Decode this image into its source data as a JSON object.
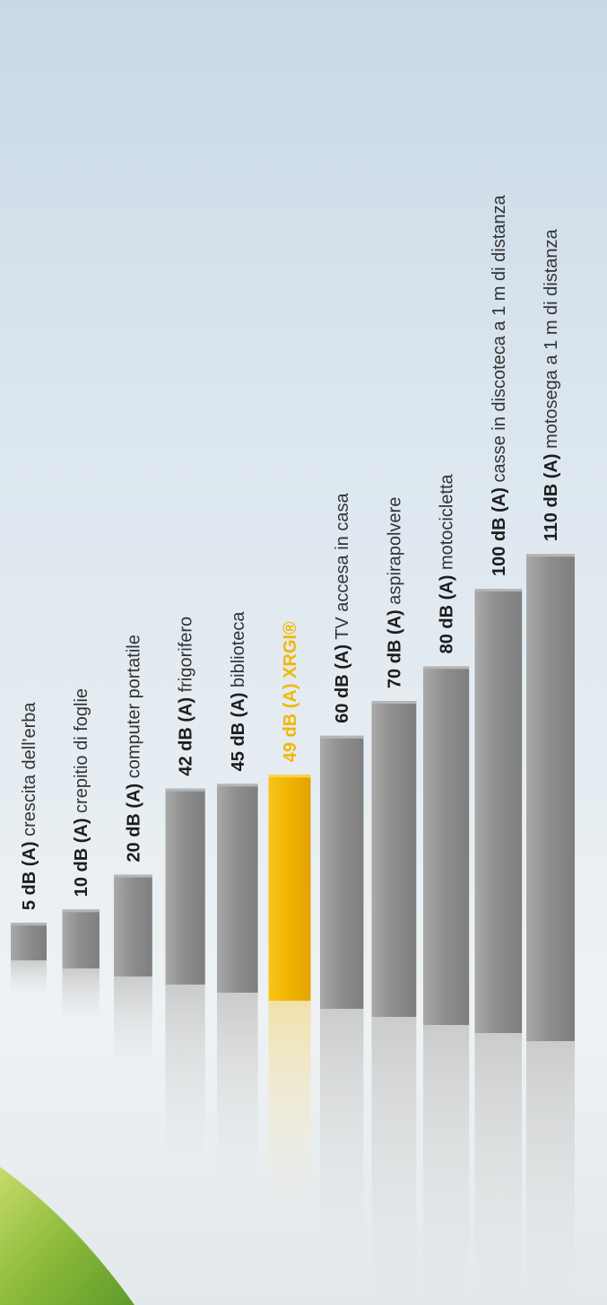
{
  "chart_data": {
    "type": "bar",
    "unit": "dB (A)",
    "bars": [
      {
        "value": 5,
        "value_text": "5 dB (A)",
        "description": "crescita dell'erba"
      },
      {
        "value": 10,
        "value_text": "10 dB (A)",
        "description": "crepitio di foglie"
      },
      {
        "value": 20,
        "value_text": "20 dB (A)",
        "description": "computer portatile"
      },
      {
        "value": 42,
        "value_text": "42 dB (A)",
        "description": "frigorifero"
      },
      {
        "value": 45,
        "value_text": "45 dB (A)",
        "description": "biblioteca"
      },
      {
        "value": 49,
        "value_text": "49 dB (A)",
        "description": "XRGI®",
        "highlight": true
      },
      {
        "value": 60,
        "value_text": "60 dB (A)",
        "description": "TV accesa in casa"
      },
      {
        "value": 70,
        "value_text": "70 dB (A)",
        "description": "aspirapolvere"
      },
      {
        "value": 80,
        "value_text": "80 dB (A)",
        "description": "motocicletta"
      },
      {
        "value": 100,
        "value_text": "100 dB (A)",
        "description": "casse in discoteca a 1 m di distanza"
      },
      {
        "value": 110,
        "value_text": "110 dB (A)",
        "description": "motosega a 1 m di distanza"
      }
    ],
    "colors": {
      "bar": "#9a9a9a",
      "highlight": "#f2b705",
      "label": "#1d1d1d"
    }
  }
}
